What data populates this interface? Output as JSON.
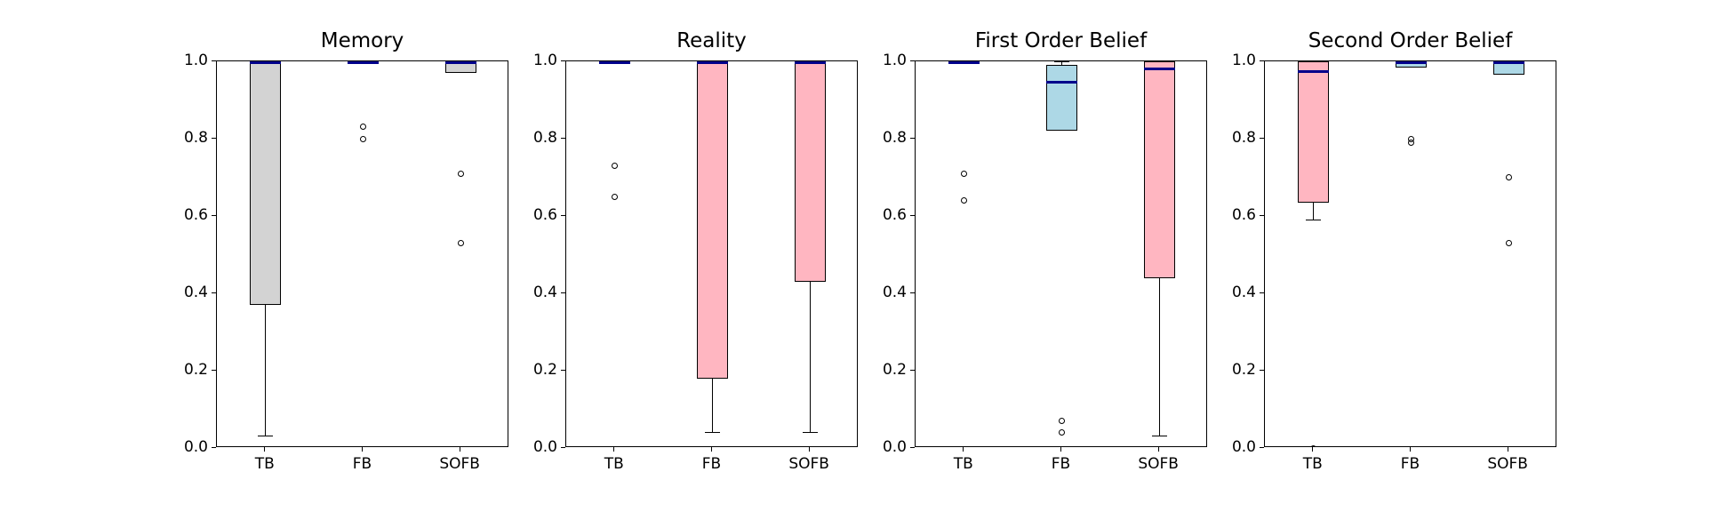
{
  "figure": {
    "background": "#ffffff"
  },
  "colors": {
    "median_line": "#00008b",
    "box_edge": "#000000",
    "gray_box": "#d3d3d3",
    "pink_box": "#ffb6c1",
    "blue_box": "#add8e6",
    "axis": "#000000",
    "text": "#000000"
  },
  "chart_data": [
    {
      "type": "boxplot",
      "title": "Memory",
      "categories": [
        "TB",
        "FB",
        "SOFB"
      ],
      "xlabel": "",
      "ylabel": "",
      "ylim": [
        0.0,
        1.0
      ],
      "yticks": [
        "0.0",
        "0.2",
        "0.4",
        "0.6",
        "0.8",
        "1.0"
      ],
      "grid": false,
      "legend": "none",
      "boxes": [
        {
          "category": "TB",
          "color": "#d3d3d3",
          "q1": 0.37,
          "median": 1.0,
          "q3": 1.0,
          "whisker_low": 0.03,
          "whisker_high": 1.0,
          "outliers": []
        },
        {
          "category": "FB",
          "color": "#d3d3d3",
          "q1": 1.0,
          "median": 1.0,
          "q3": 1.0,
          "whisker_low": 1.0,
          "whisker_high": 1.0,
          "outliers": [
            0.83,
            0.8
          ]
        },
        {
          "category": "SOFB",
          "color": "#d3d3d3",
          "q1": 0.97,
          "median": 1.0,
          "q3": 1.0,
          "whisker_low": 0.97,
          "whisker_high": 1.0,
          "outliers": [
            0.71,
            0.53
          ]
        }
      ]
    },
    {
      "type": "boxplot",
      "title": "Reality",
      "categories": [
        "TB",
        "FB",
        "SOFB"
      ],
      "xlabel": "",
      "ylabel": "",
      "ylim": [
        0.0,
        1.0
      ],
      "yticks": [
        "0.0",
        "0.2",
        "0.4",
        "0.6",
        "0.8",
        "1.0"
      ],
      "grid": false,
      "legend": "none",
      "boxes": [
        {
          "category": "TB",
          "color": "#ffb6c1",
          "q1": 1.0,
          "median": 1.0,
          "q3": 1.0,
          "whisker_low": 1.0,
          "whisker_high": 1.0,
          "outliers": [
            0.73,
            0.65
          ]
        },
        {
          "category": "FB",
          "color": "#ffb6c1",
          "q1": 0.18,
          "median": 1.0,
          "q3": 1.0,
          "whisker_low": 0.04,
          "whisker_high": 1.0,
          "outliers": []
        },
        {
          "category": "SOFB",
          "color": "#ffb6c1",
          "q1": 0.43,
          "median": 1.0,
          "q3": 1.0,
          "whisker_low": 0.04,
          "whisker_high": 1.0,
          "outliers": []
        }
      ]
    },
    {
      "type": "boxplot",
      "title": "First Order Belief",
      "categories": [
        "TB",
        "FB",
        "SOFB"
      ],
      "xlabel": "",
      "ylabel": "",
      "ylim": [
        0.0,
        1.0
      ],
      "yticks": [
        "0.0",
        "0.2",
        "0.4",
        "0.6",
        "0.8",
        "1.0"
      ],
      "grid": false,
      "legend": "none",
      "boxes": [
        {
          "category": "TB",
          "color": "#ffb6c1",
          "q1": 1.0,
          "median": 1.0,
          "q3": 1.0,
          "whisker_low": 1.0,
          "whisker_high": 1.0,
          "outliers": [
            0.71,
            0.64
          ]
        },
        {
          "category": "FB",
          "color": "#add8e6",
          "q1": 0.82,
          "median": 0.945,
          "q3": 0.99,
          "whisker_low": 0.82,
          "whisker_high": 1.0,
          "outliers": [
            0.07,
            0.04
          ]
        },
        {
          "category": "SOFB",
          "color": "#ffb6c1",
          "q1": 0.44,
          "median": 0.98,
          "q3": 1.0,
          "whisker_low": 0.03,
          "whisker_high": 1.0,
          "outliers": []
        }
      ]
    },
    {
      "type": "boxplot",
      "title": "Second Order Belief",
      "categories": [
        "TB",
        "FB",
        "SOFB"
      ],
      "xlabel": "",
      "ylabel": "",
      "ylim": [
        0.0,
        1.0
      ],
      "yticks": [
        "0.0",
        "0.2",
        "0.4",
        "0.6",
        "0.8",
        "1.0"
      ],
      "grid": false,
      "legend": "none",
      "boxes": [
        {
          "category": "TB",
          "color": "#ffb6c1",
          "q1": 0.635,
          "median": 0.973,
          "q3": 1.0,
          "whisker_low": 0.59,
          "whisker_high": 1.0,
          "outliers": [
            0.0
          ]
        },
        {
          "category": "FB",
          "color": "#add8e6",
          "q1": 0.985,
          "median": 1.0,
          "q3": 1.0,
          "whisker_low": 0.985,
          "whisker_high": 1.0,
          "outliers": [
            0.8,
            0.79
          ]
        },
        {
          "category": "SOFB",
          "color": "#add8e6",
          "q1": 0.965,
          "median": 1.0,
          "q3": 1.0,
          "whisker_low": 0.965,
          "whisker_high": 1.0,
          "outliers": [
            0.7,
            0.53
          ]
        }
      ]
    }
  ]
}
